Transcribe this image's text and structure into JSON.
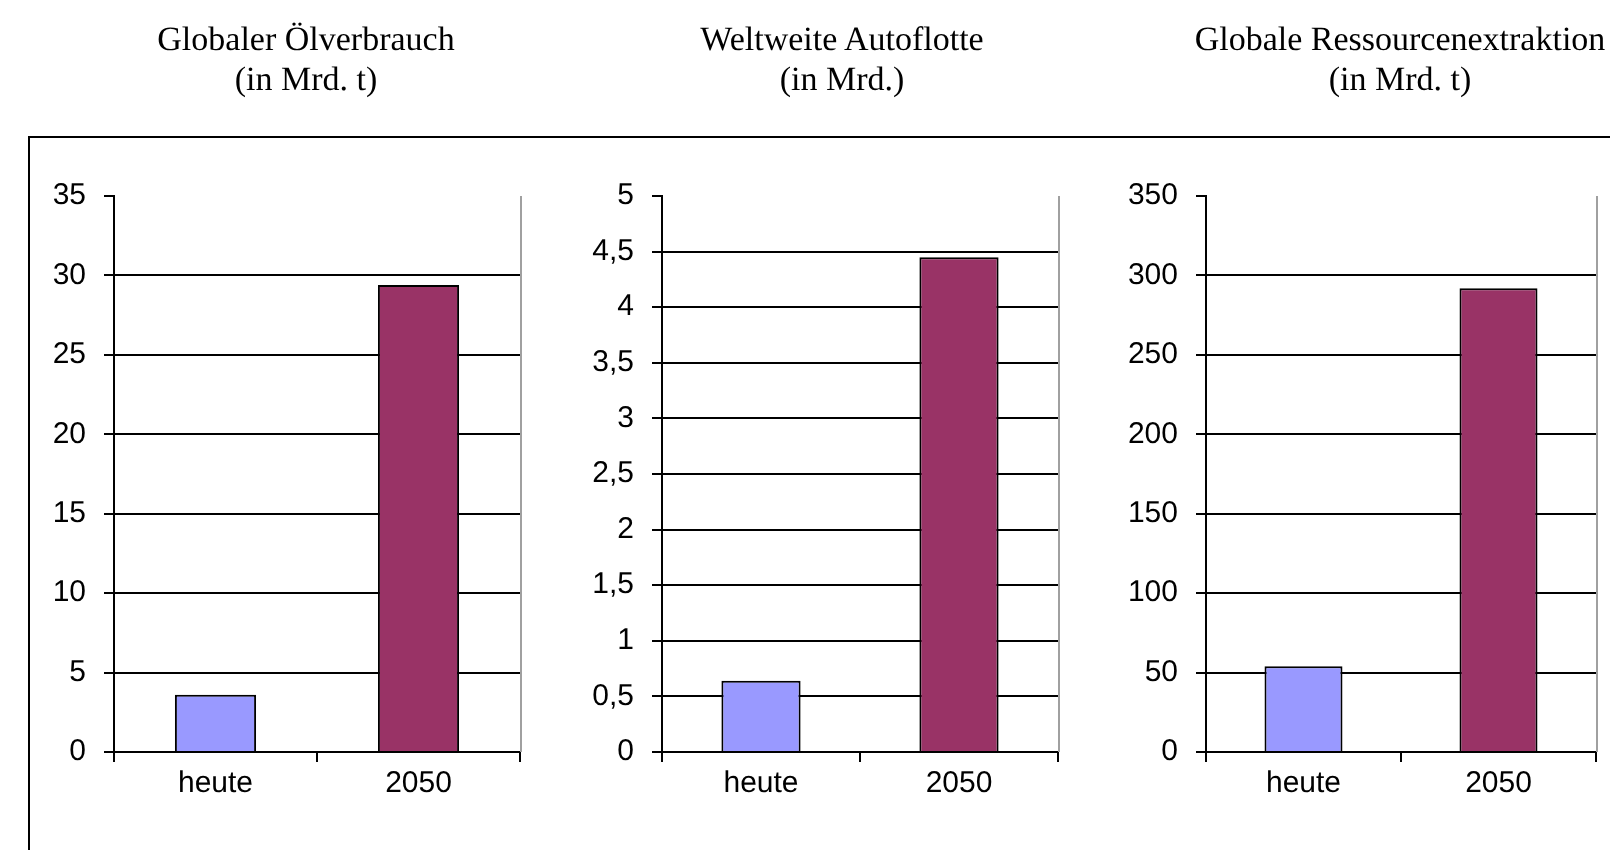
{
  "chart_data": [
    {
      "type": "bar",
      "title": "Globaler Ölverbrauch",
      "subtitle": "(in Mrd. t)",
      "categories": [
        "heute",
        "2050"
      ],
      "values": [
        3.6,
        29.4
      ],
      "colors": [
        "#9999ff",
        "#993366"
      ],
      "ylim": [
        0,
        35
      ],
      "yticks": [
        0,
        5,
        10,
        15,
        20,
        25,
        30,
        35
      ],
      "grid": "y"
    },
    {
      "type": "bar",
      "title": "Weltweite Autoflotte",
      "subtitle": "(in Mrd.)",
      "categories": [
        "heute",
        "2050"
      ],
      "values": [
        0.64,
        4.45
      ],
      "colors": [
        "#9999ff",
        "#993366"
      ],
      "ylim": [
        0,
        5
      ],
      "yticks": [
        0,
        {
          "value": 0.5,
          "label": "0,5"
        },
        1,
        {
          "value": 1.5,
          "label": "1,5"
        },
        2,
        {
          "value": 2.5,
          "label": "2,5"
        },
        3,
        {
          "value": 3.5,
          "label": "3,5"
        },
        4,
        {
          "value": 4.5,
          "label": "4,5"
        },
        5
      ],
      "grid": "y"
    },
    {
      "type": "bar",
      "title": "Globale Ressourcenextraktion",
      "subtitle": "(in Mrd. t)",
      "categories": [
        "heute",
        "2050"
      ],
      "values": [
        54,
        292
      ],
      "colors": [
        "#9999ff",
        "#993366"
      ],
      "ylim": [
        0,
        350
      ],
      "yticks": [
        0,
        50,
        100,
        150,
        200,
        250,
        300,
        350
      ],
      "grid": "y"
    }
  ]
}
